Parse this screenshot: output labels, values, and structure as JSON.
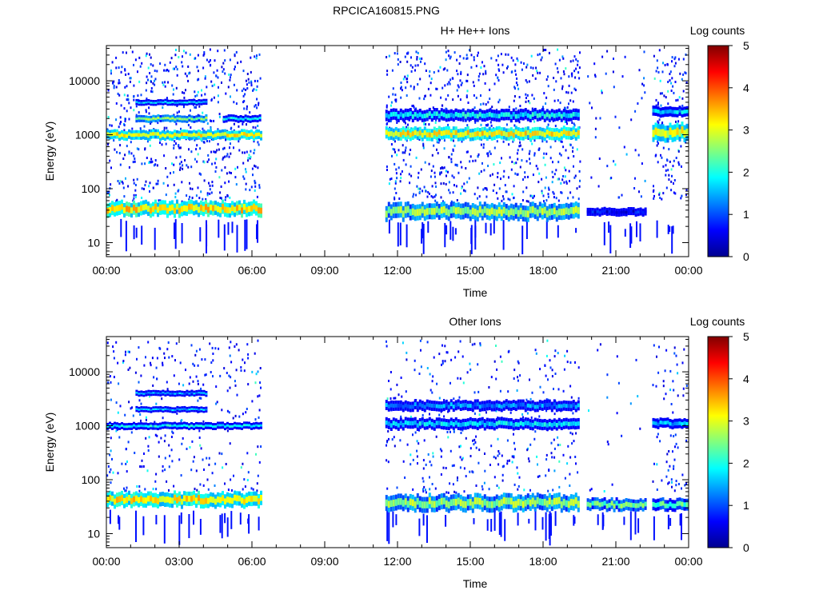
{
  "figure_title": "RPCICA160815.PNG",
  "chart_data": [
    {
      "type": "heatmap",
      "title": "H+ He++ Ions",
      "xlabel": "Time",
      "ylabel": "Energy (eV)",
      "x_tick_labels": [
        "00:00",
        "03:00",
        "06:00",
        "09:00",
        "12:00",
        "15:00",
        "18:00",
        "21:00",
        "00:00"
      ],
      "x_range_hours": [
        0,
        24
      ],
      "y_scale": "log",
      "y_range": [
        5.5,
        45000
      ],
      "y_tick_labels": [
        "10",
        "100",
        "1000",
        "10000"
      ],
      "y_tick_values": [
        10,
        100,
        1000,
        10000
      ],
      "colorbar": {
        "label": "Log counts",
        "range": [
          0,
          5
        ],
        "tick_labels": [
          "0",
          "1",
          "2",
          "3",
          "4",
          "5"
        ],
        "tick_values": [
          0,
          1,
          2,
          3,
          4,
          5
        ]
      },
      "data_segments_hours": [
        [
          0,
          6.35
        ],
        [
          11.5,
          19.5
        ],
        [
          19.8,
          22.2
        ],
        [
          22.5,
          23.9
        ]
      ],
      "bands": [
        {
          "t": [
            0,
            6.35
          ],
          "energy": [
            850,
            1150
          ],
          "log_counts": 3.1
        },
        {
          "t": [
            11.5,
            19.5
          ],
          "energy": [
            850,
            1300
          ],
          "log_counts": 3.2
        },
        {
          "t": [
            22.5,
            23.9
          ],
          "energy": [
            800,
            1500
          ],
          "log_counts": 3.0
        },
        {
          "t": [
            1.2,
            4.1
          ],
          "energy": [
            1800,
            2200
          ],
          "log_counts": 2.5
        },
        {
          "t": [
            4.8,
            6.35
          ],
          "energy": [
            1800,
            2200
          ],
          "log_counts": 1.8
        },
        {
          "t": [
            11.5,
            19.5
          ],
          "energy": [
            1900,
            2800
          ],
          "log_counts": 1.8
        },
        {
          "t": [
            22.5,
            23.9
          ],
          "energy": [
            2300,
            3200
          ],
          "log_counts": 1.6
        },
        {
          "t": [
            1.2,
            4.1
          ],
          "energy": [
            3700,
            4300
          ],
          "log_counts": 1.7
        },
        {
          "t": [
            0,
            6.35
          ],
          "energy": [
            33,
            55
          ],
          "log_counts": 3.3
        },
        {
          "t": [
            11.5,
            19.5
          ],
          "energy": [
            28,
            50
          ],
          "log_counts": 2.6
        },
        {
          "t": [
            19.8,
            22.2
          ],
          "energy": [
            33,
            42
          ],
          "log_counts": 0.6
        }
      ]
    },
    {
      "type": "heatmap",
      "title": "Other Ions",
      "xlabel": "Time",
      "ylabel": "Energy (eV)",
      "x_tick_labels": [
        "00:00",
        "03:00",
        "06:00",
        "09:00",
        "12:00",
        "15:00",
        "18:00",
        "21:00",
        "00:00"
      ],
      "x_range_hours": [
        0,
        24
      ],
      "y_scale": "log",
      "y_range": [
        5.5,
        45000
      ],
      "y_tick_labels": [
        "10",
        "100",
        "1000",
        "10000"
      ],
      "y_tick_values": [
        10,
        100,
        1000,
        10000
      ],
      "colorbar": {
        "label": "Log counts",
        "range": [
          0,
          5
        ],
        "tick_labels": [
          "0",
          "1",
          "2",
          "3",
          "4",
          "5"
        ],
        "tick_values": [
          0,
          1,
          2,
          3,
          4,
          5
        ]
      },
      "data_segments_hours": [
        [
          0,
          6.35
        ],
        [
          11.5,
          19.5
        ],
        [
          19.8,
          22.2
        ],
        [
          22.5,
          23.9
        ]
      ],
      "bands": [
        {
          "t": [
            0,
            6.35
          ],
          "energy": [
            900,
            1100
          ],
          "log_counts": 1.8
        },
        {
          "t": [
            11.5,
            19.5
          ],
          "energy": [
            900,
            1300
          ],
          "log_counts": 1.7
        },
        {
          "t": [
            22.5,
            23.9
          ],
          "energy": [
            950,
            1300
          ],
          "log_counts": 1.5
        },
        {
          "t": [
            1.2,
            4.1
          ],
          "energy": [
            1850,
            2150
          ],
          "log_counts": 1.6
        },
        {
          "t": [
            1.2,
            4.1
          ],
          "energy": [
            3700,
            4300
          ],
          "log_counts": 1.4
        },
        {
          "t": [
            11.5,
            19.5
          ],
          "energy": [
            2000,
            2800
          ],
          "log_counts": 1.3
        },
        {
          "t": [
            0,
            6.35
          ],
          "energy": [
            33,
            55
          ],
          "log_counts": 3.2
        },
        {
          "t": [
            11.5,
            19.5
          ],
          "energy": [
            28,
            50
          ],
          "log_counts": 2.6
        },
        {
          "t": [
            19.8,
            22.2
          ],
          "energy": [
            28,
            42
          ],
          "log_counts": 2.4
        },
        {
          "t": [
            22.5,
            23.9
          ],
          "energy": [
            28,
            42
          ],
          "log_counts": 2.2
        }
      ]
    }
  ]
}
